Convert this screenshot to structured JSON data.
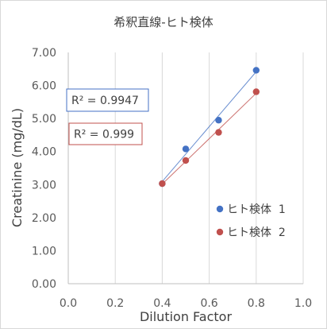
{
  "chart_data": {
    "type": "scatter",
    "title": "希釈直線-ヒト検体",
    "xlabel": "Dilution Factor",
    "ylabel": "Creatinine (mg/dL)",
    "xlim": [
      0,
      1
    ],
    "ylim": [
      0,
      7
    ],
    "x_ticks": [
      "0.0",
      "0.2",
      "0.4",
      "0.6",
      "0.8",
      "1.0"
    ],
    "y_ticks": [
      "0.00",
      "1.00",
      "2.00",
      "3.00",
      "4.00",
      "5.00",
      "6.00",
      "7.00"
    ],
    "grid": "vertical",
    "legend_position": "right-center",
    "series": [
      {
        "name": "ヒト検体  1",
        "color": "#4472c4",
        "trendline": true,
        "r_squared_label": "R² = 0.9947",
        "x": [
          0.4,
          0.5,
          0.64,
          0.8
        ],
        "y": [
          3.03,
          4.08,
          4.95,
          6.46
        ]
      },
      {
        "name": "ヒト検体  2",
        "color": "#c0504d",
        "trendline": true,
        "r_squared_label": "R² = 0.999",
        "x": [
          0.4,
          0.5,
          0.64,
          0.8
        ],
        "y": [
          3.03,
          3.73,
          4.58,
          5.81
        ]
      }
    ]
  }
}
